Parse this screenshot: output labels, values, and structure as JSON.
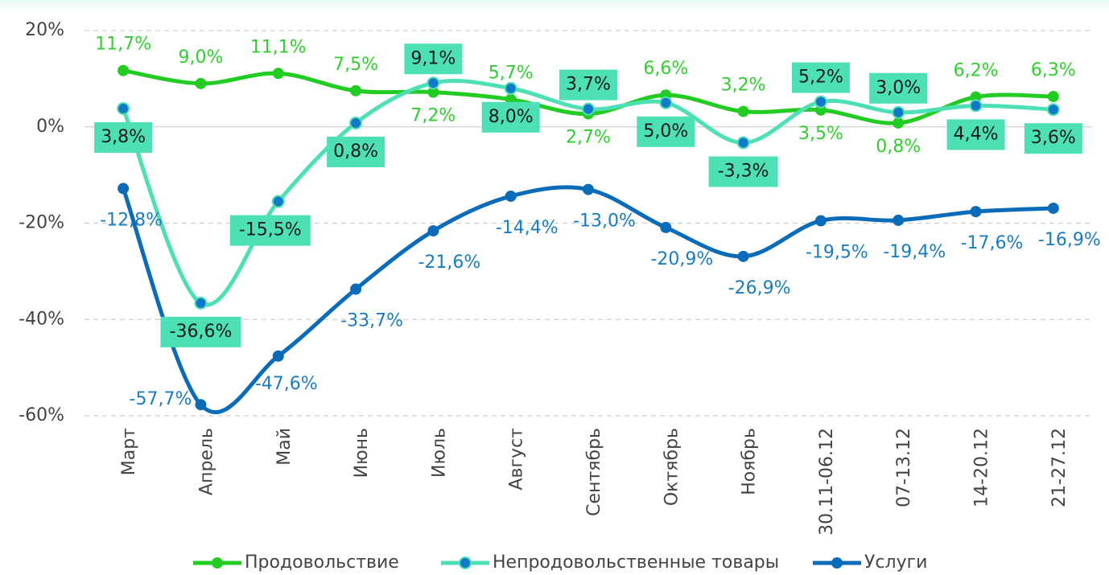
{
  "chart_data": {
    "type": "line",
    "categories": [
      "Март",
      "Апрель",
      "Май",
      "Июнь",
      "Июль",
      "Август",
      "Сентябрь",
      "Октябрь",
      "Ноябрь",
      "30.11-06.12",
      "07-13.12",
      "14-20.12",
      "21-27.12"
    ],
    "series": [
      {
        "name": "Продовольствие",
        "color": "#22cc22",
        "label_color": "#2fcf2f",
        "values": [
          11.7,
          9.0,
          11.1,
          7.5,
          7.2,
          5.7,
          2.7,
          6.6,
          3.2,
          3.5,
          0.8,
          6.2,
          6.3
        ],
        "value_labels": [
          "11,7%",
          "9,0%",
          "11,1%",
          "7,5%",
          "7,2%",
          "5,7%",
          "2,7%",
          "6,6%",
          "3,2%",
          "3,5%",
          "0,8%",
          "6,2%",
          "6,3%"
        ]
      },
      {
        "name": "Непродовольственные товары",
        "color": "#4ee0b5",
        "label_color": "#1a1a1a",
        "values": [
          3.8,
          -36.6,
          -15.5,
          0.8,
          9.1,
          8.0,
          3.7,
          5.0,
          -3.3,
          5.2,
          3.0,
          4.4,
          3.6
        ],
        "value_labels": [
          "3,8%",
          "-36,6%",
          "-15,5%",
          "0,8%",
          "9,1%",
          "8,0%",
          "3,7%",
          "5,0%",
          "-3,3%",
          "5,2%",
          "3,0%",
          "4,4%",
          "3,6%"
        ]
      },
      {
        "name": "Услуги",
        "color": "#0a6cb8",
        "label_color": "#1a7cc0",
        "values": [
          -12.8,
          -57.7,
          -47.6,
          -33.7,
          -21.6,
          -14.4,
          -13.0,
          -20.9,
          -26.9,
          -19.5,
          -19.4,
          -17.6,
          -16.9
        ],
        "value_labels": [
          "-12,8%",
          "-57,7%",
          "-47,6%",
          "-33,7%",
          "-21,6%",
          "-14,4%",
          "-13,0%",
          "-20,9%",
          "-26,9%",
          "-19,5%",
          "-19,4%",
          "-17,6%",
          "-16,9%"
        ]
      }
    ],
    "ylim": [
      -60,
      20
    ],
    "yticks": [
      {
        "value": 20,
        "label": "20%"
      },
      {
        "value": 0,
        "label": "0%"
      },
      {
        "value": -20,
        "label": "-20%"
      },
      {
        "value": -40,
        "label": "-40%"
      },
      {
        "value": -60,
        "label": "-60%"
      }
    ],
    "grid": true,
    "legend": "bottom"
  }
}
